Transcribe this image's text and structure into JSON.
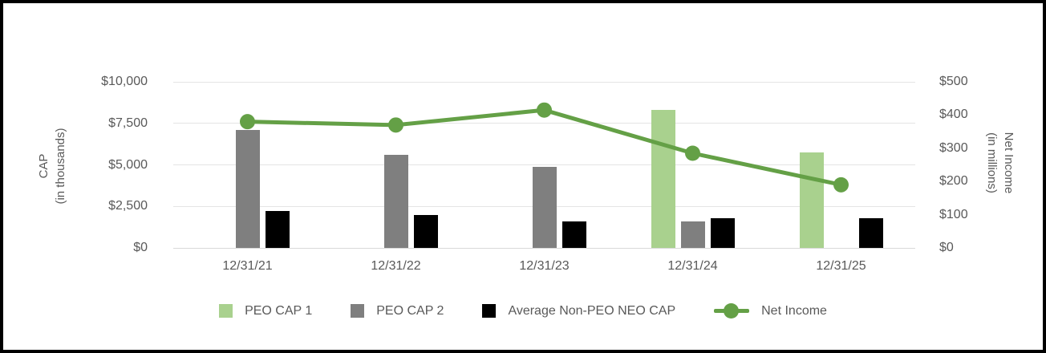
{
  "chart_data": {
    "type": "bar+line",
    "title": "",
    "categories": [
      "12/31/21",
      "12/31/22",
      "12/31/23",
      "12/31/24",
      "12/31/25"
    ],
    "bar_series": [
      {
        "name": "PEO CAP 1",
        "color": "#a9d18e",
        "axis": "left",
        "values": [
          null,
          null,
          null,
          8300,
          5750
        ]
      },
      {
        "name": "PEO CAP 2",
        "color": "#7f7f7f",
        "axis": "left",
        "values": [
          7100,
          5600,
          4900,
          1600,
          null
        ]
      },
      {
        "name": "Average Non-PEO NEO CAP",
        "color": "#000000",
        "axis": "left",
        "values": [
          2200,
          2000,
          1600,
          1800,
          1800
        ]
      }
    ],
    "line_series": [
      {
        "name": "Net Income",
        "color": "#64a046",
        "axis": "right",
        "values": [
          380,
          370,
          415,
          285,
          190
        ]
      }
    ],
    "left_axis": {
      "title_line1": "CAP",
      "title_line2": "(in thousands)",
      "min": 0,
      "max": 10000,
      "step": 2500,
      "tick_labels": [
        "$0",
        "$2,500",
        "$5,000",
        "$7,500",
        "$10,000"
      ]
    },
    "right_axis": {
      "title_line1": "Net Income",
      "title_line2": "(in millions)",
      "min": 0,
      "max": 500,
      "step": 100,
      "tick_labels": [
        "$0",
        "$100",
        "$200",
        "$300",
        "$400",
        "$500"
      ]
    },
    "grid": true,
    "legend_position": "bottom",
    "colors": {
      "background": "#ffffff",
      "frame_border": "#000000",
      "grid": "#e4e4e4",
      "baseline": "#d9d9d9",
      "text": "#595959"
    }
  }
}
